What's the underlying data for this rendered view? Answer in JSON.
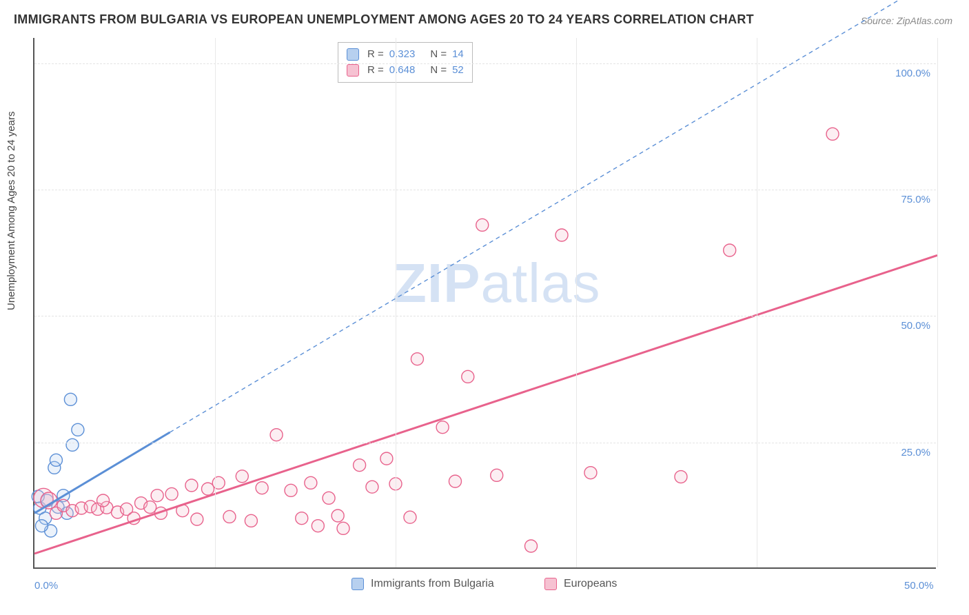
{
  "title": "IMMIGRANTS FROM BULGARIA VS EUROPEAN UNEMPLOYMENT AMONG AGES 20 TO 24 YEARS CORRELATION CHART",
  "source": "Source: ZipAtlas.com",
  "y_axis_label": "Unemployment Among Ages 20 to 24 years",
  "watermark_zip": "ZIP",
  "watermark_atlas": "atlas",
  "chart": {
    "type": "scatter-with-regression",
    "background_color": "#ffffff",
    "grid_color": "#e3e3e3",
    "axis_color": "#555555",
    "tick_label_color": "#5b8fd6",
    "xlim": [
      0,
      50
    ],
    "ylim": [
      0,
      105
    ],
    "x_ticks": [
      0,
      10,
      20,
      30,
      40,
      50
    ],
    "x_tick_labels": [
      "0.0%",
      "",
      "",
      "",
      "",
      "50.0%"
    ],
    "y_ticks": [
      25,
      50,
      75,
      100
    ],
    "y_tick_labels": [
      "25.0%",
      "50.0%",
      "75.0%",
      "100.0%"
    ],
    "marker_radius": 9,
    "marker_fill_opacity": 0.28,
    "series": [
      {
        "id": "bulgaria",
        "label": "Immigrants from Bulgaria",
        "color": "#5b8fd6",
        "fill": "#b7d0ef",
        "stroke": "#5b8fd6",
        "R": "0.323",
        "N": "14",
        "regression": {
          "x1": 0,
          "y1": 11,
          "x2": 7.5,
          "y2": 27,
          "x2_extend": 50,
          "y2_extend": 117,
          "solid_until_x": 7.5,
          "dash": "6,5",
          "width_solid": 3,
          "width_dash": 1.4
        },
        "points": [
          {
            "x": 0.3,
            "y": 12
          },
          {
            "x": 0.6,
            "y": 10
          },
          {
            "x": 0.7,
            "y": 13.5
          },
          {
            "x": 0.9,
            "y": 7.5
          },
          {
            "x": 1.1,
            "y": 20
          },
          {
            "x": 1.2,
            "y": 21.5
          },
          {
            "x": 1.3,
            "y": 12.2
          },
          {
            "x": 1.6,
            "y": 14.5
          },
          {
            "x": 1.8,
            "y": 11
          },
          {
            "x": 2.1,
            "y": 24.5
          },
          {
            "x": 2.4,
            "y": 27.5
          },
          {
            "x": 2.0,
            "y": 33.5
          },
          {
            "x": 0.4,
            "y": 8.5
          },
          {
            "x": 0.2,
            "y": 14.3
          }
        ]
      },
      {
        "id": "europeans",
        "label": "Europeans",
        "color": "#e8628c",
        "fill": "#f6c2d2",
        "stroke": "#e8628c",
        "R": "0.648",
        "N": "52",
        "regression": {
          "x1": 0,
          "y1": 3,
          "x2": 50,
          "y2": 62,
          "dash": null,
          "width": 3
        },
        "points": [
          {
            "x": 0.5,
            "y": 14,
            "r": 14
          },
          {
            "x": 0.8,
            "y": 13.5,
            "r": 12
          },
          {
            "x": 1.2,
            "y": 11
          },
          {
            "x": 1.6,
            "y": 12.5
          },
          {
            "x": 2.1,
            "y": 11.5
          },
          {
            "x": 2.6,
            "y": 12
          },
          {
            "x": 3.1,
            "y": 12.3
          },
          {
            "x": 3.5,
            "y": 11.8
          },
          {
            "x": 4.0,
            "y": 12.1
          },
          {
            "x": 4.6,
            "y": 11.2
          },
          {
            "x": 5.1,
            "y": 11.8
          },
          {
            "x": 5.9,
            "y": 13
          },
          {
            "x": 6.4,
            "y": 12.2
          },
          {
            "x": 6.8,
            "y": 14.5
          },
          {
            "x": 7.0,
            "y": 11
          },
          {
            "x": 7.6,
            "y": 14.8
          },
          {
            "x": 8.2,
            "y": 11.5
          },
          {
            "x": 8.7,
            "y": 16.5
          },
          {
            "x": 9.0,
            "y": 9.8
          },
          {
            "x": 9.6,
            "y": 15.8
          },
          {
            "x": 10.2,
            "y": 17
          },
          {
            "x": 10.8,
            "y": 10.3
          },
          {
            "x": 11.5,
            "y": 18.3
          },
          {
            "x": 12.0,
            "y": 9.5
          },
          {
            "x": 12.6,
            "y": 16
          },
          {
            "x": 13.4,
            "y": 26.5
          },
          {
            "x": 14.2,
            "y": 15.5
          },
          {
            "x": 14.8,
            "y": 10
          },
          {
            "x": 15.3,
            "y": 17
          },
          {
            "x": 15.7,
            "y": 8.5
          },
          {
            "x": 16.3,
            "y": 14
          },
          {
            "x": 16.8,
            "y": 10.5
          },
          {
            "x": 17.1,
            "y": 8
          },
          {
            "x": 18.0,
            "y": 20.5
          },
          {
            "x": 18.7,
            "y": 16.2
          },
          {
            "x": 19.5,
            "y": 21.8
          },
          {
            "x": 20.0,
            "y": 16.8
          },
          {
            "x": 20.8,
            "y": 10.2
          },
          {
            "x": 21.2,
            "y": 41.5
          },
          {
            "x": 22.6,
            "y": 28
          },
          {
            "x": 23.3,
            "y": 17.3
          },
          {
            "x": 24.0,
            "y": 38
          },
          {
            "x": 24.8,
            "y": 68
          },
          {
            "x": 25.6,
            "y": 18.5
          },
          {
            "x": 27.5,
            "y": 4.5
          },
          {
            "x": 29.2,
            "y": 66
          },
          {
            "x": 30.8,
            "y": 19
          },
          {
            "x": 35.8,
            "y": 18.2
          },
          {
            "x": 38.5,
            "y": 63
          },
          {
            "x": 44.2,
            "y": 86
          },
          {
            "x": 5.5,
            "y": 10
          },
          {
            "x": 3.8,
            "y": 13.5
          }
        ]
      }
    ]
  },
  "top_legend": {
    "rows": [
      {
        "swatch_fill": "#b7d0ef",
        "swatch_border": "#5b8fd6",
        "r_lbl": "R =",
        "r_val": "0.323",
        "n_lbl": "N =",
        "n_val": "14"
      },
      {
        "swatch_fill": "#f6c2d2",
        "swatch_border": "#e8628c",
        "r_lbl": "R =",
        "r_val": "0.648",
        "n_lbl": "N =",
        "n_val": "52"
      }
    ]
  },
  "bottom_legend": [
    {
      "swatch_fill": "#b7d0ef",
      "swatch_border": "#5b8fd6",
      "label": "Immigrants from Bulgaria"
    },
    {
      "swatch_fill": "#f6c2d2",
      "swatch_border": "#e8628c",
      "label": "Europeans"
    }
  ]
}
